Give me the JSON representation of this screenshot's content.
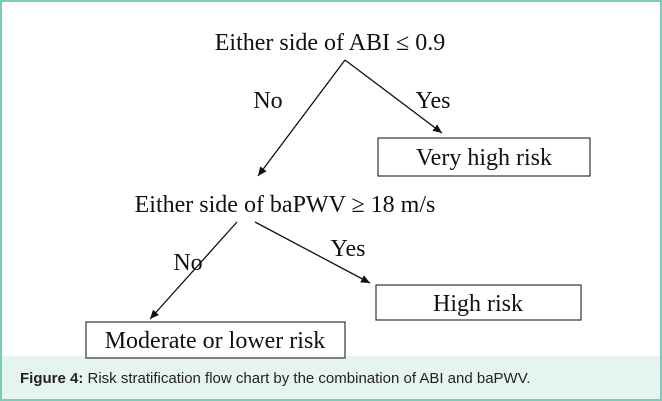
{
  "nodes": [
    {
      "label": "Either side of ABI ≤ 0.9"
    },
    {
      "label": "Very high risk"
    },
    {
      "label": "Either side of baPWV ≥ 18 m/s"
    },
    {
      "label": "High risk"
    },
    {
      "label": "Moderate or lower risk"
    }
  ],
  "edges": [
    {
      "label": "No"
    },
    {
      "label": "Yes"
    },
    {
      "label": "No"
    },
    {
      "label": "Yes"
    }
  ],
  "caption": {
    "label": "Figure 4:",
    "text": " Risk stratification flow chart by the combination of ABI and baPWV."
  }
}
